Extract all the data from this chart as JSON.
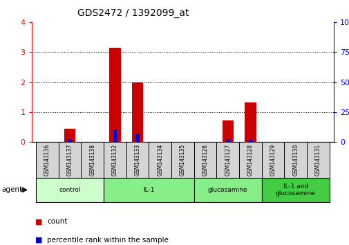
{
  "title": "GDS2472 / 1392099_at",
  "samples": [
    "GSM143136",
    "GSM143137",
    "GSM143138",
    "GSM143132",
    "GSM143133",
    "GSM143134",
    "GSM143135",
    "GSM143126",
    "GSM143127",
    "GSM143128",
    "GSM143129",
    "GSM143130",
    "GSM143131"
  ],
  "count_values": [
    0.0,
    0.45,
    0.0,
    3.15,
    2.0,
    0.0,
    0.0,
    0.0,
    0.72,
    1.33,
    0.0,
    0.0,
    0.0
  ],
  "percentile_values_right": [
    0.0,
    2.5,
    0.0,
    10.5,
    7.0,
    0.0,
    0.0,
    0.0,
    2.5,
    2.0,
    0.0,
    0.0,
    0.0
  ],
  "ylim_left": [
    0,
    4
  ],
  "ylim_right": [
    0,
    100
  ],
  "yticks_left": [
    0,
    1,
    2,
    3,
    4
  ],
  "yticks_right": [
    0,
    25,
    50,
    75,
    100
  ],
  "ytick_labels_right": [
    "0",
    "25",
    "50",
    "75",
    "100%"
  ],
  "bar_color_red": "#cc0000",
  "bar_color_blue": "#0000cc",
  "bg_color": "#ffffff",
  "legend_count": "count",
  "legend_percentile": "percentile rank within the sample",
  "group_defs": [
    {
      "label": "control",
      "start": 0,
      "end": 2,
      "color": "#ccffcc"
    },
    {
      "label": "IL-1",
      "start": 3,
      "end": 6,
      "color": "#88ee88"
    },
    {
      "label": "glucosamine",
      "start": 7,
      "end": 9,
      "color": "#88ee88"
    },
    {
      "label": "IL-1 and\nglucosamine",
      "start": 10,
      "end": 12,
      "color": "#44cc44"
    }
  ],
  "sample_box_color": "#d4d4d4",
  "grid_yticks": [
    1,
    2,
    3
  ]
}
